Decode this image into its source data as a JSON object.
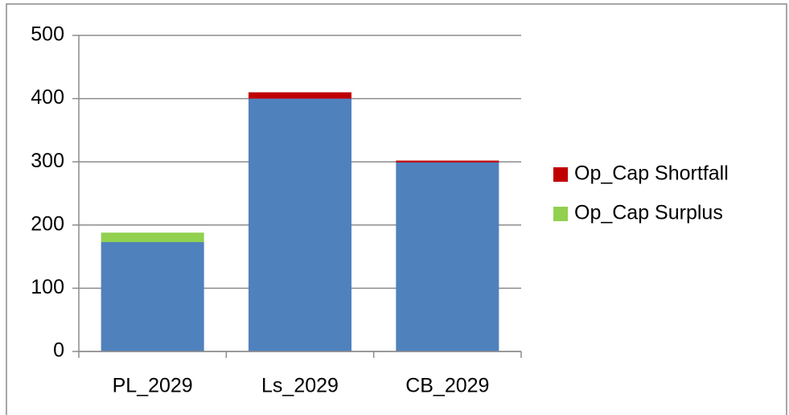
{
  "chart_data": {
    "type": "stacked_bar",
    "categories": [
      "PL_2029",
      "Ls_2029",
      "CB_2029"
    ],
    "series": [
      {
        "color": "#4f81bd",
        "values": [
          173,
          400,
          299
        ]
      },
      {
        "name": "Op_Cap Shortfall",
        "color": "#c00000",
        "values": [
          0,
          10,
          3
        ]
      },
      {
        "name": "Op_Cap Surplus",
        "color": "#92d050",
        "values": [
          15,
          0,
          0
        ]
      }
    ],
    "ylim": [
      0,
      500
    ],
    "yticks": [
      0,
      100,
      200,
      300,
      400,
      500
    ],
    "grid": true,
    "legend": "right"
  }
}
